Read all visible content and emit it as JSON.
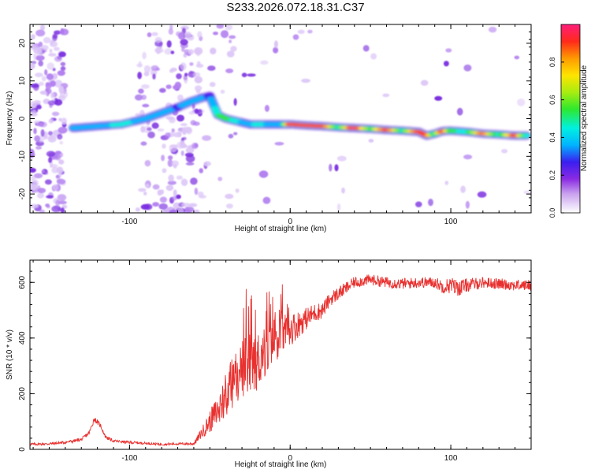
{
  "page_title": "S233.2026.072.18.31.C37",
  "chart_data": [
    {
      "type": "heatmap",
      "xlabel": "Height of straight line (km)",
      "ylabel": "Frequency (Hz)",
      "xlim": [
        -162,
        150
      ],
      "ylim": [
        -25,
        25
      ],
      "xticks": [
        -100,
        0,
        100
      ],
      "yticks": [
        -20,
        -10,
        0,
        10,
        20
      ],
      "colorbar": {
        "label": "Normalized spectral amplitude",
        "range": [
          0,
          1
        ],
        "ticks": [
          0.0,
          0.2,
          0.4,
          0.6,
          0.8
        ]
      },
      "ridge": {
        "description": "main spectral ridge (x km, frequency Hz)",
        "x": [
          -135,
          -120,
          -105,
          -90,
          -80,
          -70,
          -62,
          -55,
          -50,
          -45,
          -40,
          -35,
          -30,
          -25,
          -20,
          -15,
          -10,
          -5,
          0,
          10,
          20,
          30,
          40,
          50,
          60,
          70,
          80,
          85,
          90,
          95,
          100,
          110,
          120,
          130,
          140,
          148
        ],
        "f": [
          -2.5,
          -2,
          -1.5,
          0,
          1.5,
          3,
          4.5,
          5.5,
          6,
          1,
          0,
          -0.5,
          -1,
          -1.5,
          -1.5,
          -1.5,
          -1.5,
          -1.5,
          -1.5,
          -1.8,
          -2,
          -2.3,
          -2.5,
          -2.7,
          -3,
          -3.2,
          -3.5,
          -4.5,
          -4,
          -3.3,
          -3.2,
          -3.5,
          -4,
          -4.2,
          -4.5,
          -4.5
        ],
        "amplitude": [
          0.35,
          0.3,
          0.4,
          0.3,
          0.35,
          0.25,
          0.35,
          0.3,
          0.25,
          0.45,
          0.55,
          0.4,
          0.35,
          0.3,
          0.45,
          0.35,
          0.3,
          0.35,
          0.9,
          0.85,
          0.9,
          0.45,
          0.95,
          0.5,
          0.9,
          0.45,
          0.9,
          0.85,
          0.45,
          0.9,
          0.5,
          0.4,
          0.85,
          0.4,
          0.9,
          0.35
        ]
      }
    },
    {
      "type": "line",
      "xlabel": "Height of straight line (km)",
      "ylabel": "SNR (10 * v/v)",
      "xlim": [
        -162,
        150
      ],
      "ylim": [
        0,
        680
      ],
      "xticks": [
        -100,
        0,
        100
      ],
      "yticks": [
        0,
        200,
        400,
        600
      ],
      "series": [
        {
          "name": "SNR",
          "color": "#e8312f",
          "x": [
            -162,
            -150,
            -140,
            -130,
            -125,
            -122,
            -118,
            -115,
            -110,
            -100,
            -90,
            -80,
            -70,
            -60,
            -55,
            -50,
            -45,
            -40,
            -35,
            -30,
            -25,
            -20,
            -15,
            -10,
            -5,
            0,
            5,
            10,
            15,
            20,
            25,
            30,
            40,
            50,
            60,
            70,
            80,
            90,
            95,
            100,
            105,
            110,
            120,
            130,
            140,
            150
          ],
          "y": [
            18,
            20,
            25,
            35,
            60,
            110,
            85,
            45,
            30,
            25,
            22,
            18,
            20,
            20,
            60,
            100,
            140,
            200,
            250,
            290,
            300,
            320,
            360,
            400,
            420,
            430,
            450,
            470,
            490,
            500,
            540,
            560,
            600,
            610,
            600,
            595,
            600,
            600,
            585,
            590,
            580,
            590,
            600,
            595,
            590,
            590
          ],
          "noise_amplitude": [
            5,
            5,
            5,
            6,
            8,
            10,
            8,
            6,
            5,
            5,
            4,
            4,
            4,
            5,
            20,
            40,
            60,
            80,
            100,
            110,
            120,
            110,
            100,
            90,
            80,
            60,
            50,
            40,
            35,
            30,
            25,
            25,
            20,
            20,
            20,
            20,
            20,
            20,
            25,
            30,
            30,
            25,
            20,
            20,
            20,
            20
          ]
        }
      ]
    }
  ]
}
